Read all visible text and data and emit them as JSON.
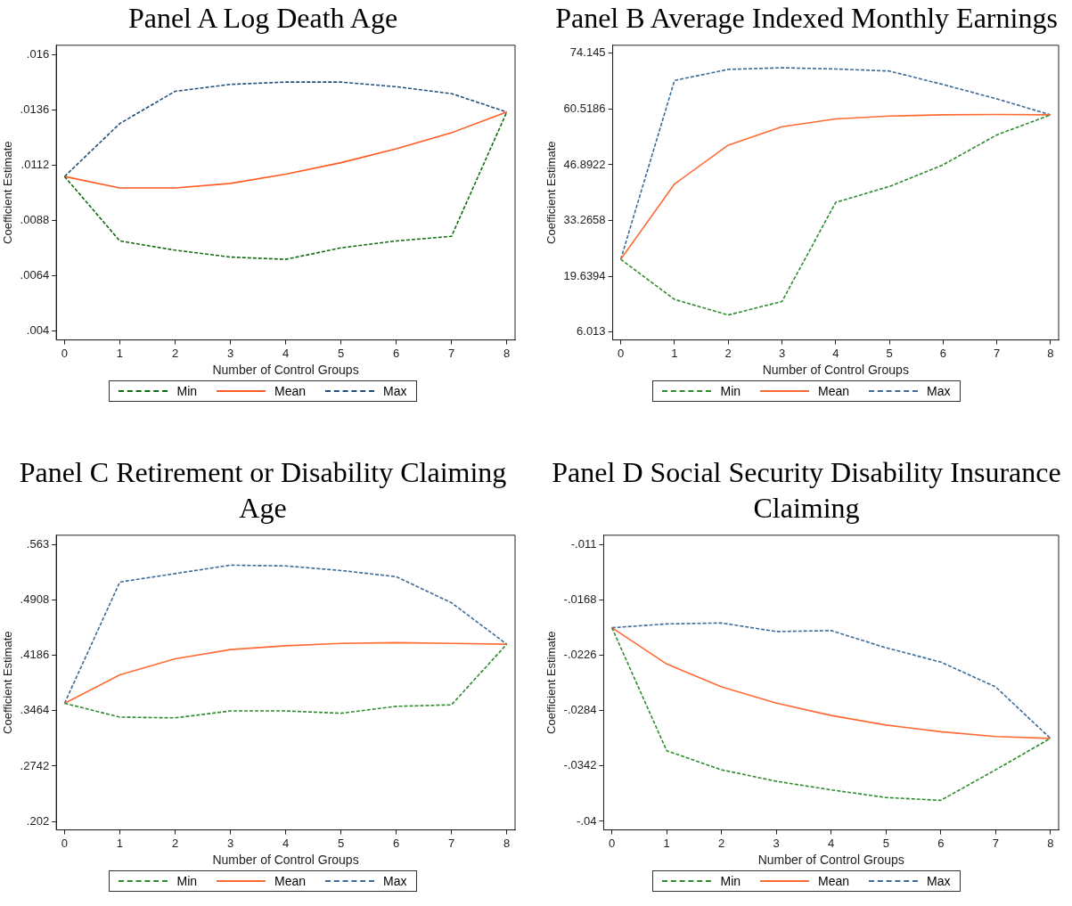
{
  "chart_data": [
    {
      "type": "line",
      "title": "Panel A Log Death Age",
      "xlabel": "Number of Control Groups",
      "ylabel": "Coefficient Estimate",
      "x": [
        0,
        1,
        2,
        3,
        4,
        5,
        6,
        7,
        8
      ],
      "xlim": [
        -0.15,
        8.15
      ],
      "xticks": [
        0,
        1,
        2,
        3,
        4,
        5,
        6,
        7,
        8
      ],
      "ylim": [
        0.0036,
        0.0164
      ],
      "yticks": [
        {
          "value": 0.004,
          "label": ".004"
        },
        {
          "value": 0.0064,
          "label": ".0064"
        },
        {
          "value": 0.0088,
          "label": ".0088"
        },
        {
          "value": 0.0112,
          "label": ".0112"
        },
        {
          "value": 0.0136,
          "label": ".0136"
        },
        {
          "value": 0.016,
          "label": ".016"
        }
      ],
      "legend": "bottom",
      "series": [
        {
          "name": "Min",
          "color": "#0e6b0e",
          "line_style": "dashed",
          "values": [
            0.0107,
            0.0079,
            0.0075,
            0.0072,
            0.0071,
            0.0076,
            0.0079,
            0.0081,
            0.0135
          ]
        },
        {
          "name": "Mean",
          "color": "#ff5a1f",
          "line_style": "solid",
          "values": [
            0.0107,
            0.0102,
            0.0102,
            0.0104,
            0.0108,
            0.0113,
            0.0119,
            0.0126,
            0.0135
          ]
        },
        {
          "name": "Max",
          "color": "#1f4e79",
          "line_style": "dashed",
          "values": [
            0.0107,
            0.013,
            0.0144,
            0.0147,
            0.0148,
            0.0148,
            0.0146,
            0.0143,
            0.0135
          ]
        }
      ]
    },
    {
      "type": "line",
      "title": "Panel B Average Indexed Monthly Earnings",
      "xlabel": "Number of Control Groups",
      "ylabel": "Coefficient Estimate",
      "x": [
        0,
        1,
        2,
        3,
        4,
        5,
        6,
        7,
        8
      ],
      "xlim": [
        -0.15,
        8.15
      ],
      "xticks": [
        0,
        1,
        2,
        3,
        4,
        5,
        6,
        7,
        8
      ],
      "ylim": [
        4.1,
        76.1
      ],
      "yticks": [
        6.013,
        19.6394,
        33.2658,
        46.8922,
        60.5186,
        74.145
      ],
      "legend": "bottom",
      "series": [
        {
          "name": "Min",
          "color": "#2e8b2e",
          "line_style": "dashed",
          "values": [
            23.8,
            14,
            10.2,
            13.5,
            37.7,
            41.6,
            46.9,
            54.2,
            59.1
          ]
        },
        {
          "name": "Mean",
          "color": "#ff6a33",
          "line_style": "solid",
          "values": [
            23.8,
            42.2,
            51.7,
            56.2,
            58.1,
            58.8,
            59.1,
            59.2,
            59.1
          ]
        },
        {
          "name": "Max",
          "color": "#3d6a96",
          "line_style": "dashed",
          "values": [
            23.8,
            67.5,
            70.2,
            70.6,
            70.3,
            69.8,
            66.5,
            63,
            59.1
          ]
        }
      ]
    },
    {
      "type": "line",
      "title": "Panel C Retirement or Disability Claiming Age",
      "xlabel": "Number of Control Groups",
      "ylabel": "Coefficient Estimate",
      "x": [
        0,
        1,
        2,
        3,
        4,
        5,
        6,
        7,
        8
      ],
      "xlim": [
        -0.15,
        8.15
      ],
      "xticks": [
        0,
        1,
        2,
        3,
        4,
        5,
        6,
        7,
        8
      ],
      "ylim": [
        0.191,
        0.575
      ],
      "yticks": [
        {
          "value": 0.202,
          "label": ".202"
        },
        {
          "value": 0.2742,
          "label": ".2742"
        },
        {
          "value": 0.3464,
          "label": ".3464"
        },
        {
          "value": 0.4186,
          "label": ".4186"
        },
        {
          "value": 0.4908,
          "label": ".4908"
        },
        {
          "value": 0.563,
          "label": ".563"
        }
      ],
      "legend": "bottom",
      "series": [
        {
          "name": "Min",
          "color": "#2e8b2e",
          "line_style": "dashed",
          "values": [
            0.356,
            0.338,
            0.337,
            0.346,
            0.346,
            0.343,
            0.352,
            0.354,
            0.433
          ]
        },
        {
          "name": "Mean",
          "color": "#ff6a33",
          "line_style": "solid",
          "values": [
            0.356,
            0.393,
            0.414,
            0.426,
            0.431,
            0.434,
            0.435,
            0.434,
            0.433
          ]
        },
        {
          "name": "Max",
          "color": "#3d6a96",
          "line_style": "dashed",
          "values": [
            0.356,
            0.514,
            0.525,
            0.536,
            0.535,
            0.529,
            0.521,
            0.487,
            0.433
          ]
        }
      ]
    },
    {
      "type": "line",
      "title": "Panel D Social Security Disability Insurance Claiming",
      "xlabel": "Number of Control Groups",
      "ylabel": "Coefficient Estimate",
      "x": [
        0,
        1,
        2,
        3,
        4,
        5,
        6,
        7,
        8
      ],
      "xlim": [
        -0.15,
        8.15
      ],
      "xticks": [
        0,
        1,
        2,
        3,
        4,
        5,
        6,
        7,
        8
      ],
      "ylim": [
        -0.0409,
        -0.01
      ],
      "yticks": [
        {
          "value": -0.04,
          "label": "-.04"
        },
        {
          "value": -0.0342,
          "label": "-.0342"
        },
        {
          "value": -0.0284,
          "label": "-.0284"
        },
        {
          "value": -0.0226,
          "label": "-.0226"
        },
        {
          "value": -0.0168,
          "label": "-.0168"
        },
        {
          "value": -0.011,
          "label": "-.011"
        }
      ],
      "legend": "bottom",
      "series": [
        {
          "name": "Min",
          "color": "#2e8b2e",
          "line_style": "dashed",
          "values": [
            -0.0197,
            -0.0326,
            -0.0346,
            -0.0358,
            -0.0367,
            -0.0375,
            -0.0378,
            -0.0346,
            -0.0313
          ]
        },
        {
          "name": "Mean",
          "color": "#ff6a33",
          "line_style": "solid",
          "values": [
            -0.0197,
            -0.0235,
            -0.0259,
            -0.0276,
            -0.0289,
            -0.0299,
            -0.0306,
            -0.0311,
            -0.0313
          ]
        },
        {
          "name": "Max",
          "color": "#3d6a96",
          "line_style": "dashed",
          "values": [
            -0.0197,
            -0.0193,
            -0.0192,
            -0.0201,
            -0.02,
            -0.0218,
            -0.0233,
            -0.0259,
            -0.0313
          ]
        }
      ]
    }
  ]
}
